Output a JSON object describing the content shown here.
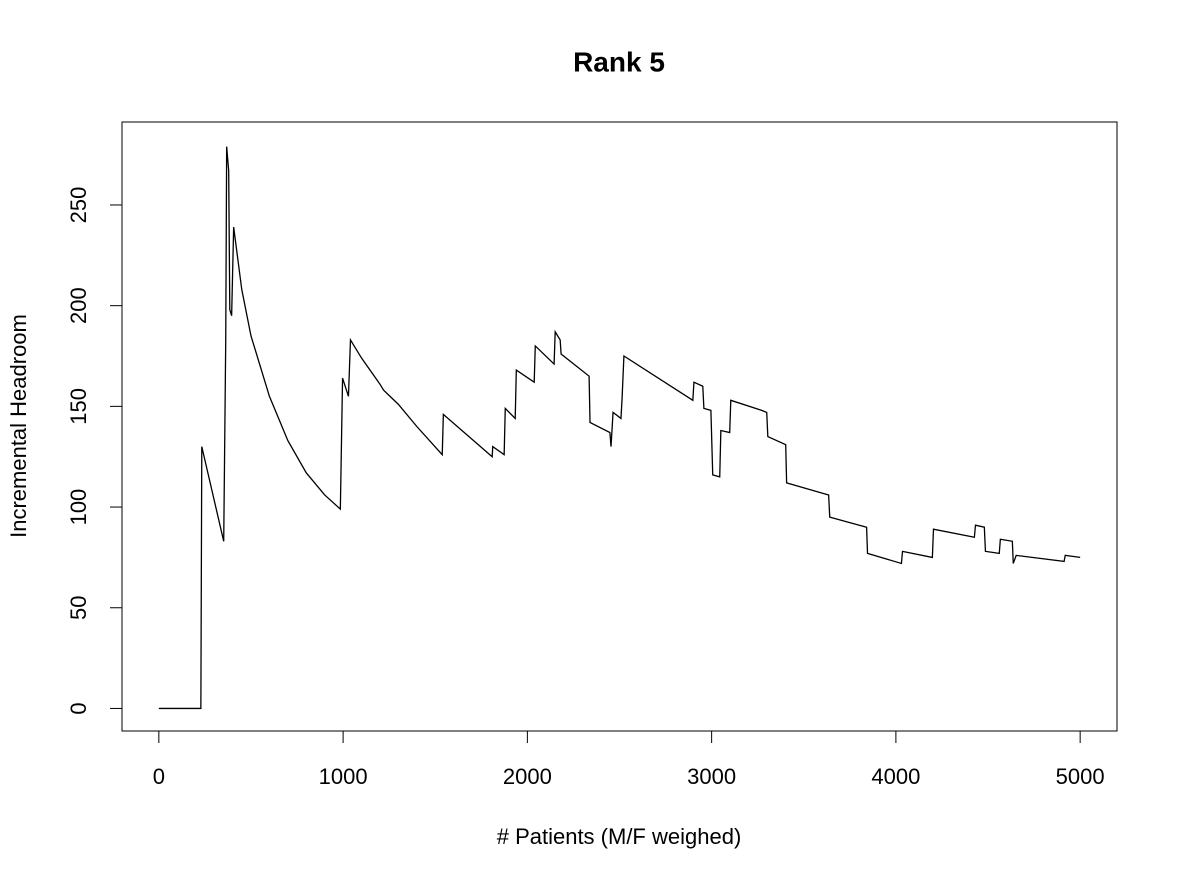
{
  "chart_data": {
    "type": "line",
    "title": "Rank 5",
    "x_label": "# Patients (M/F weighed)",
    "y_label": "Incremental Headroom",
    "x": [
      0,
      228,
      233,
      352,
      363,
      368,
      379,
      385,
      395,
      406,
      450,
      500,
      600,
      700,
      800,
      900,
      985,
      997,
      1029,
      1040,
      1100,
      1200,
      1220,
      1300,
      1400,
      1538,
      1544,
      1809,
      1812,
      1874,
      1880,
      1934,
      1940,
      2037,
      2043,
      2145,
      2151,
      2178,
      2183,
      2335,
      2340,
      2448,
      2454,
      2465,
      2508,
      2514,
      2524,
      2898,
      2904,
      2952,
      2958,
      2996,
      3006,
      3044,
      3050,
      3098,
      3104,
      3272,
      3299,
      3305,
      3402,
      3407,
      3635,
      3641,
      3841,
      3846,
      4030,
      4036,
      4198,
      4204,
      4426,
      4432,
      4480,
      4486,
      4561,
      4567,
      4632,
      4637,
      4653,
      4913,
      4919,
      5000
    ],
    "series": [
      {
        "name": "Incremental Headroom",
        "color": "#000000",
        "values": [
          0,
          0,
          130,
          83,
          183,
          279,
          267,
          198,
          195,
          239,
          208,
          185,
          155,
          133,
          117,
          106,
          99,
          164,
          155,
          183,
          174,
          161,
          158,
          151,
          140,
          126,
          146,
          125,
          130,
          126,
          149,
          144,
          168,
          162,
          180,
          171,
          187,
          183,
          176,
          165,
          142,
          137,
          130,
          147,
          144,
          154,
          175,
          153,
          162,
          160,
          149,
          148,
          116,
          115,
          138,
          137,
          153,
          148,
          147,
          135,
          131,
          112,
          106,
          95,
          90,
          77,
          72,
          78,
          75,
          89,
          85,
          91,
          90,
          78,
          77,
          84,
          83,
          72,
          76,
          73,
          76,
          75
        ]
      }
    ],
    "xlim": [
      -200,
      5200
    ],
    "ylim": [
      -11.2,
      291.2
    ],
    "xticks": [
      0,
      1000,
      2000,
      3000,
      4000,
      5000
    ],
    "yticks": [
      0,
      50,
      100,
      150,
      200,
      250
    ]
  }
}
